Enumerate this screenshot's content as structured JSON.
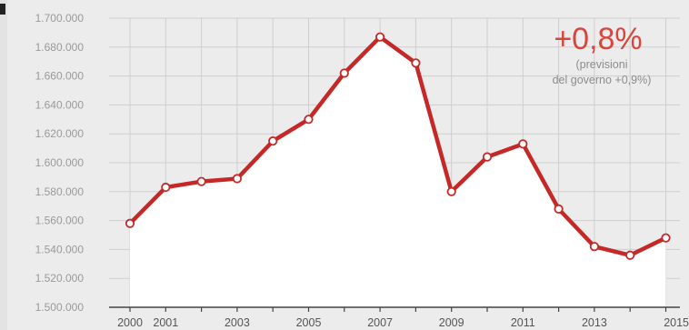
{
  "chart_data": {
    "type": "line",
    "title": "",
    "xlabel": "",
    "ylabel": "",
    "x": [
      2000,
      2001,
      2002,
      2003,
      2004,
      2005,
      2006,
      2007,
      2008,
      2009,
      2010,
      2011,
      2012,
      2013,
      2014,
      2015
    ],
    "x_tick_labels": [
      "2000",
      "2001",
      "2003",
      "2005",
      "2007",
      "2009",
      "2011",
      "2013",
      "2015"
    ],
    "y_tick_labels": [
      "1.500.000",
      "1.520.000",
      "1.540.000",
      "1.560.000",
      "1.580.000",
      "1.600.000",
      "1.620.000",
      "1.640.000",
      "1.660.000",
      "1.680.000",
      "1.700.000"
    ],
    "ylim": [
      1500000,
      1700000
    ],
    "grid": true,
    "series": [
      {
        "values": [
          1558000,
          1583000,
          1587000,
          1589000,
          1615000,
          1630000,
          1662000,
          1687000,
          1669000,
          1580000,
          1604000,
          1613000,
          1568000,
          1542000,
          1536000,
          1548000
        ]
      }
    ],
    "annotations": {
      "highlight_value": "+0,8%",
      "note_line1": "(previsioni",
      "note_line2": "del governo +0,9%)"
    },
    "colors": {
      "line": "#c62828",
      "marker_fill": "#ffffff",
      "area_fill": "#ffffff",
      "annotation": "#d8453b",
      "grid": "#cfcfcf",
      "background": "#ececec"
    }
  }
}
